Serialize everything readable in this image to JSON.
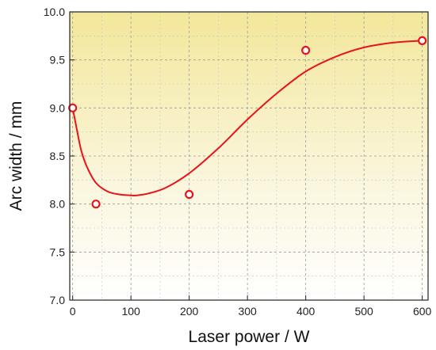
{
  "chart_data": {
    "type": "scatter",
    "xlabel": "Laser power / W",
    "ylabel": "Arc width / mm",
    "xlim": [
      -5,
      610
    ],
    "ylim": [
      7.0,
      10.0
    ],
    "xticks": [
      0,
      100,
      200,
      300,
      400,
      500,
      600
    ],
    "yticks": [
      7.0,
      7.5,
      8.0,
      8.5,
      9.0,
      9.5,
      10.0
    ],
    "xtick_labels": [
      "0",
      "100",
      "200",
      "300",
      "400",
      "500",
      "600"
    ],
    "ytick_labels": [
      "7.0",
      "7.5",
      "8.0",
      "8.5",
      "9.0",
      "9.5",
      "10.0"
    ],
    "grid": true,
    "background": "yellow-to-white vertical gradient",
    "series": [
      {
        "marker": "open-circle",
        "color": "#e8141c",
        "x": [
          0,
          40,
          200,
          400,
          600
        ],
        "y": [
          9.0,
          8.0,
          8.1,
          9.6,
          9.7
        ]
      }
    ],
    "fit_curve": {
      "color": "#e8141c",
      "x": [
        0,
        8,
        15,
        25,
        40,
        60,
        80,
        100,
        110,
        130,
        160,
        200,
        250,
        300,
        350,
        400,
        450,
        500,
        550,
        600
      ],
      "y": [
        9.0,
        8.75,
        8.55,
        8.38,
        8.22,
        8.13,
        8.1,
        8.09,
        8.09,
        8.11,
        8.17,
        8.32,
        8.58,
        8.88,
        9.15,
        9.38,
        9.53,
        9.63,
        9.68,
        9.7
      ]
    }
  }
}
